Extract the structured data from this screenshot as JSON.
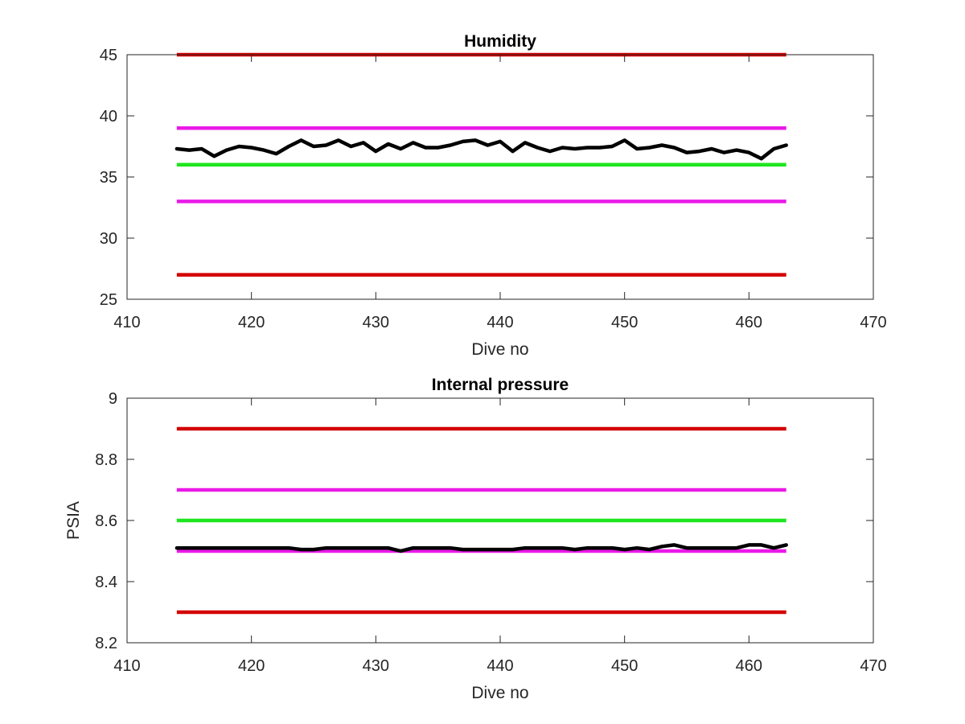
{
  "chart_data": [
    {
      "type": "line",
      "title": "Humidity",
      "xlabel": "Dive no",
      "ylabel": "",
      "xlim": [
        410,
        470
      ],
      "ylim": [
        25,
        45
      ],
      "xticks": [
        410,
        420,
        430,
        440,
        450,
        460,
        470
      ],
      "yticks": [
        25,
        30,
        35,
        40,
        45
      ],
      "xtick_labels": [
        "410",
        "420",
        "430",
        "440",
        "450",
        "460",
        "470"
      ],
      "ytick_labels": [
        "25",
        "30",
        "35",
        "40",
        "45"
      ],
      "grid": false,
      "legend": "none",
      "threshold_lines": [
        {
          "y": 45,
          "x": [
            414,
            463
          ],
          "color": "#d40000"
        },
        {
          "y": 39,
          "x": [
            414,
            463
          ],
          "color": "#ea1ae8"
        },
        {
          "y": 36,
          "x": [
            414,
            463
          ],
          "color": "#1ee61e"
        },
        {
          "y": 33,
          "x": [
            414,
            463
          ],
          "color": "#ea1ae8"
        },
        {
          "y": 27,
          "x": [
            414,
            463
          ],
          "color": "#d40000"
        }
      ],
      "series": [
        {
          "color": "#000000",
          "x": [
            414,
            415,
            416,
            417,
            418,
            419,
            420,
            421,
            422,
            423,
            424,
            425,
            426,
            427,
            428,
            429,
            430,
            431,
            432,
            433,
            434,
            435,
            436,
            437,
            438,
            439,
            440,
            441,
            442,
            443,
            444,
            445,
            446,
            447,
            448,
            449,
            450,
            451,
            452,
            453,
            454,
            455,
            456,
            457,
            458,
            459,
            460,
            461,
            462,
            463
          ],
          "values": [
            37.3,
            37.2,
            37.3,
            36.7,
            37.2,
            37.5,
            37.4,
            37.2,
            36.9,
            37.5,
            38.0,
            37.5,
            37.6,
            38.0,
            37.5,
            37.8,
            37.1,
            37.7,
            37.3,
            37.8,
            37.4,
            37.4,
            37.6,
            37.9,
            38.0,
            37.6,
            37.9,
            37.1,
            37.8,
            37.4,
            37.1,
            37.4,
            37.3,
            37.4,
            37.4,
            37.5,
            38.0,
            37.3,
            37.4,
            37.6,
            37.4,
            37.0,
            37.1,
            37.3,
            37.0,
            37.2,
            37.0,
            36.5,
            37.3,
            37.6
          ]
        }
      ]
    },
    {
      "type": "line",
      "title": "Internal pressure",
      "xlabel": "Dive no",
      "ylabel": "PSIA",
      "xlim": [
        410,
        470
      ],
      "ylim": [
        8.2,
        9.0
      ],
      "xticks": [
        410,
        420,
        430,
        440,
        450,
        460,
        470
      ],
      "yticks": [
        8.2,
        8.4,
        8.6,
        8.8,
        9.0
      ],
      "xtick_labels": [
        "410",
        "420",
        "430",
        "440",
        "450",
        "460",
        "470"
      ],
      "ytick_labels": [
        "8.2",
        "8.4",
        "8.6",
        "8.8",
        "9"
      ],
      "grid": false,
      "legend": "none",
      "threshold_lines": [
        {
          "y": 8.9,
          "x": [
            414,
            463
          ],
          "color": "#d40000"
        },
        {
          "y": 8.7,
          "x": [
            414,
            463
          ],
          "color": "#ea1ae8"
        },
        {
          "y": 8.6,
          "x": [
            414,
            463
          ],
          "color": "#1ee61e"
        },
        {
          "y": 8.5,
          "x": [
            414,
            463
          ],
          "color": "#ea1ae8"
        },
        {
          "y": 8.3,
          "x": [
            414,
            463
          ],
          "color": "#d40000"
        }
      ],
      "series": [
        {
          "color": "#000000",
          "x": [
            414,
            415,
            416,
            417,
            418,
            419,
            420,
            421,
            422,
            423,
            424,
            425,
            426,
            427,
            428,
            429,
            430,
            431,
            432,
            433,
            434,
            435,
            436,
            437,
            438,
            439,
            440,
            441,
            442,
            443,
            444,
            445,
            446,
            447,
            448,
            449,
            450,
            451,
            452,
            453,
            454,
            455,
            456,
            457,
            458,
            459,
            460,
            461,
            462,
            463
          ],
          "values": [
            8.51,
            8.51,
            8.51,
            8.51,
            8.51,
            8.51,
            8.51,
            8.51,
            8.51,
            8.51,
            8.505,
            8.505,
            8.51,
            8.51,
            8.51,
            8.51,
            8.51,
            8.51,
            8.5,
            8.51,
            8.51,
            8.51,
            8.51,
            8.505,
            8.505,
            8.505,
            8.505,
            8.505,
            8.51,
            8.51,
            8.51,
            8.51,
            8.505,
            8.51,
            8.51,
            8.51,
            8.505,
            8.51,
            8.505,
            8.515,
            8.52,
            8.51,
            8.51,
            8.51,
            8.51,
            8.51,
            8.52,
            8.52,
            8.51,
            8.52
          ]
        }
      ]
    }
  ]
}
